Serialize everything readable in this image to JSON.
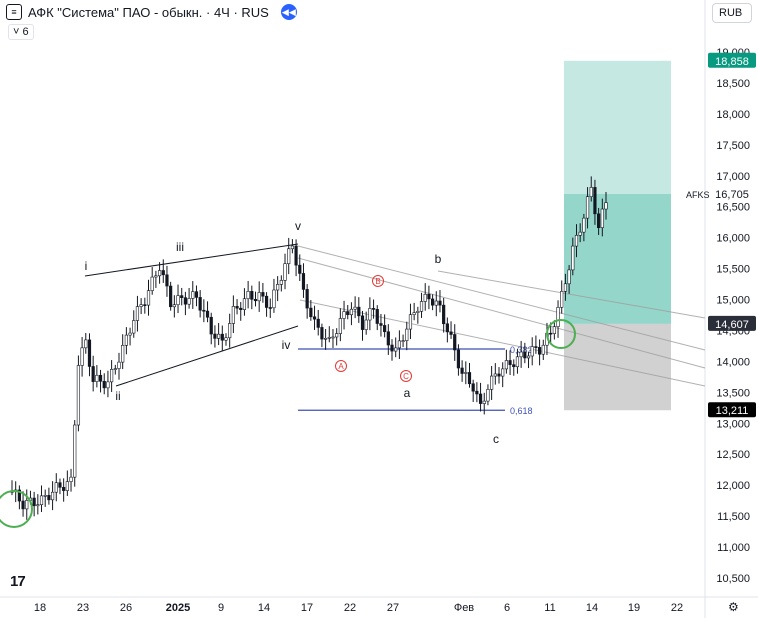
{
  "header": {
    "symbol_icon": "chart-icon",
    "title": "АФК \"Система\" ПАО - обыкн. · 4Ч · RUS",
    "indicator_toggle": "˅ 6",
    "control_icon": "rewind-icon"
  },
  "currency": "RUB",
  "ticker_label": "AFKS",
  "logo": "17",
  "colors": {
    "up": "#26a69a",
    "down": "#ef5350",
    "candle": "#131722",
    "target": "#9fd9cf",
    "target_dark": "#6cc6b7",
    "stop": "#bdbdbd",
    "wave_line": "#131722",
    "fib_line": "#3f51b5",
    "channel": "#9e9e9e",
    "circle": "#4caf50",
    "label_red": "#e53935"
  },
  "chart_data": {
    "type": "candlestick",
    "symbol": "AFKS",
    "timeframe": "4Ч",
    "ylim": [
      10000,
      19200
    ],
    "y_ticks": [
      10500,
      11000,
      11500,
      12000,
      12500,
      13000,
      13500,
      14000,
      14500,
      15000,
      15500,
      16000,
      16500,
      17000,
      17500,
      18000,
      18500,
      19000
    ],
    "y_tick_labels": [
      "10,500",
      "11,000",
      "11,500",
      "12,000",
      "12,500",
      "13,000",
      "13,500",
      "14,000",
      "14,500",
      "15,000",
      "15,500",
      "16,000",
      "16,500",
      "17,000",
      "17,500",
      "18,000",
      "18,500",
      "19,000"
    ],
    "x_ticks": [
      "18",
      "23",
      "26",
      "2025",
      "9",
      "14",
      "17",
      "22",
      "27",
      "Фев",
      "6",
      "11",
      "14",
      "19",
      "22"
    ],
    "price_tags": [
      {
        "label": "18,858",
        "value": 18858,
        "style": "green"
      },
      {
        "label": "16,705",
        "value": 16705,
        "style": "plain"
      },
      {
        "label": "14,607",
        "value": 14607,
        "style": "dark"
      },
      {
        "label": "13,211",
        "value": 13211,
        "style": "black"
      }
    ],
    "price_path": [
      [
        0,
        11900
      ],
      [
        3,
        11700
      ],
      [
        8,
        11750
      ],
      [
        12,
        11950
      ],
      [
        16,
        12050
      ],
      [
        18,
        14000
      ],
      [
        20,
        14300
      ],
      [
        22,
        13700
      ],
      [
        26,
        13650
      ],
      [
        30,
        14200
      ],
      [
        33,
        14700
      ],
      [
        36,
        15000
      ],
      [
        40,
        15550
      ],
      [
        43,
        14950
      ],
      [
        46,
        15000
      ],
      [
        50,
        15050
      ],
      [
        54,
        14500
      ],
      [
        57,
        14300
      ],
      [
        60,
        14800
      ],
      [
        64,
        15050
      ],
      [
        67,
        15050
      ],
      [
        70,
        14900
      ],
      [
        73,
        15400
      ],
      [
        76,
        15900
      ],
      [
        79,
        15100
      ],
      [
        82,
        14600
      ],
      [
        86,
        14300
      ],
      [
        89,
        14650
      ],
      [
        92,
        14900
      ],
      [
        95,
        14600
      ],
      [
        98,
        14850
      ],
      [
        101,
        14400
      ],
      [
        104,
        14150
      ],
      [
        107,
        14550
      ],
      [
        110,
        14900
      ],
      [
        113,
        15050
      ],
      [
        116,
        14850
      ],
      [
        119,
        14350
      ],
      [
        122,
        13800
      ],
      [
        125,
        13600
      ],
      [
        127,
        13250
      ],
      [
        129,
        13600
      ],
      [
        132,
        13850
      ],
      [
        136,
        14000
      ],
      [
        140,
        14150
      ],
      [
        143,
        14200
      ],
      [
        146,
        14450
      ],
      [
        149,
        15050
      ],
      [
        152,
        15800
      ],
      [
        155,
        16350
      ],
      [
        157,
        16800
      ],
      [
        159,
        16150
      ],
      [
        161,
        16600
      ]
    ],
    "wave_labels": [
      {
        "text": "i",
        "x": 0,
        "y": 0,
        "color": "dark"
      },
      {
        "text": "ii",
        "x": 0,
        "y": 0,
        "color": "dark"
      },
      {
        "text": "iii",
        "x": 0,
        "y": 0,
        "color": "dark"
      },
      {
        "text": "iv",
        "x": 0,
        "y": 0,
        "color": "dark"
      },
      {
        "text": "v",
        "x": 0,
        "y": 0,
        "color": "dark"
      },
      {
        "text": "a",
        "x": 0,
        "y": 0,
        "color": "dark"
      },
      {
        "text": "b",
        "x": 0,
        "y": 0,
        "color": "dark"
      },
      {
        "text": "c",
        "x": 0,
        "y": 0,
        "color": "dark"
      }
    ],
    "circled_labels": [
      "A",
      "B",
      "C"
    ],
    "fib_levels": [
      {
        "label": "0,382",
        "value": 14200
      },
      {
        "label": "0,618",
        "value": 13211
      }
    ],
    "target_zone": {
      "top": 18858,
      "entry": 14607,
      "stop": 13211,
      "inner_top": 16705
    }
  }
}
